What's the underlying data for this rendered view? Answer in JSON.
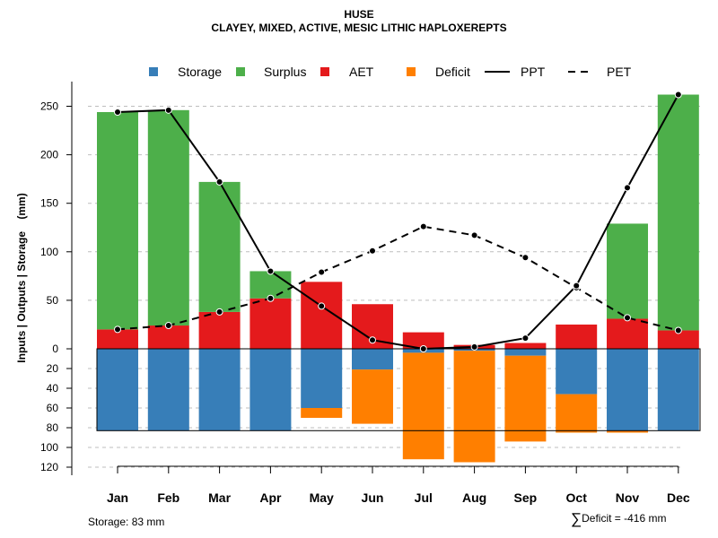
{
  "title": "HUSE",
  "subtitle": "CLAYEY, MIXED, ACTIVE, MESIC LITHIC HAPLOXEREPTS",
  "storage_note": "Storage: 83 mm",
  "deficit_label": "Deficit = -416 mm",
  "deficit_symbol": "∑",
  "colors": {
    "storage": "#377EB8",
    "surplus": "#4DAF4A",
    "aet": "#E41A1C",
    "deficit": "#FF7F00",
    "line": "#000000",
    "grid": "#BEBEBE"
  },
  "chart_data": {
    "type": "bar",
    "title": "HUSE",
    "subtitle": "CLAYEY, MIXED, ACTIVE, MESIC LITHIC HAPLOXEREPTS",
    "ylabel": "Inputs | Outputs | Storage    (mm)",
    "xlabel": "",
    "categories": [
      "Jan",
      "Feb",
      "Mar",
      "Apr",
      "May",
      "Jun",
      "Jul",
      "Aug",
      "Sep",
      "Oct",
      "Nov",
      "Dec"
    ],
    "ylim_upper": [
      0,
      265
    ],
    "ylim_lower": [
      0,
      120
    ],
    "yticks_upper": [
      0,
      50,
      100,
      150,
      200,
      250
    ],
    "yticks_lower": [
      20,
      40,
      60,
      80,
      100,
      120
    ],
    "legend": [
      {
        "key": "storage",
        "label": "Storage",
        "kind": "box"
      },
      {
        "key": "surplus",
        "label": "Surplus",
        "kind": "box"
      },
      {
        "key": "aet",
        "label": "AET",
        "kind": "box"
      },
      {
        "key": "deficit",
        "label": "Deficit",
        "kind": "box"
      },
      {
        "key": "ppt",
        "label": "PPT",
        "kind": "solid"
      },
      {
        "key": "pet",
        "label": "PET",
        "kind": "dashed"
      }
    ],
    "legend_position": "top",
    "series": [
      {
        "name": "AET",
        "values": [
          20,
          24,
          38,
          52,
          69,
          46,
          17,
          4,
          6,
          25,
          31,
          19
        ]
      },
      {
        "name": "Surplus",
        "values": [
          224,
          222,
          134,
          28,
          0,
          0,
          0,
          0,
          0,
          0,
          98,
          243
        ]
      },
      {
        "name": "Storage",
        "values": [
          83,
          83,
          83,
          83,
          60,
          21,
          4,
          2,
          7,
          46,
          83,
          83
        ]
      },
      {
        "name": "Deficit",
        "values": [
          0,
          0,
          0,
          0,
          10,
          55,
          108,
          113,
          87,
          39,
          2,
          0
        ]
      },
      {
        "name": "PPT",
        "values": [
          244,
          246,
          172,
          80,
          44,
          9,
          0,
          2,
          11,
          65,
          166,
          262
        ]
      },
      {
        "name": "PET",
        "values": [
          20,
          24,
          38,
          52,
          79,
          101,
          126,
          117,
          94,
          63,
          32,
          19
        ]
      }
    ],
    "storage_capacity": 83,
    "grid": true
  }
}
